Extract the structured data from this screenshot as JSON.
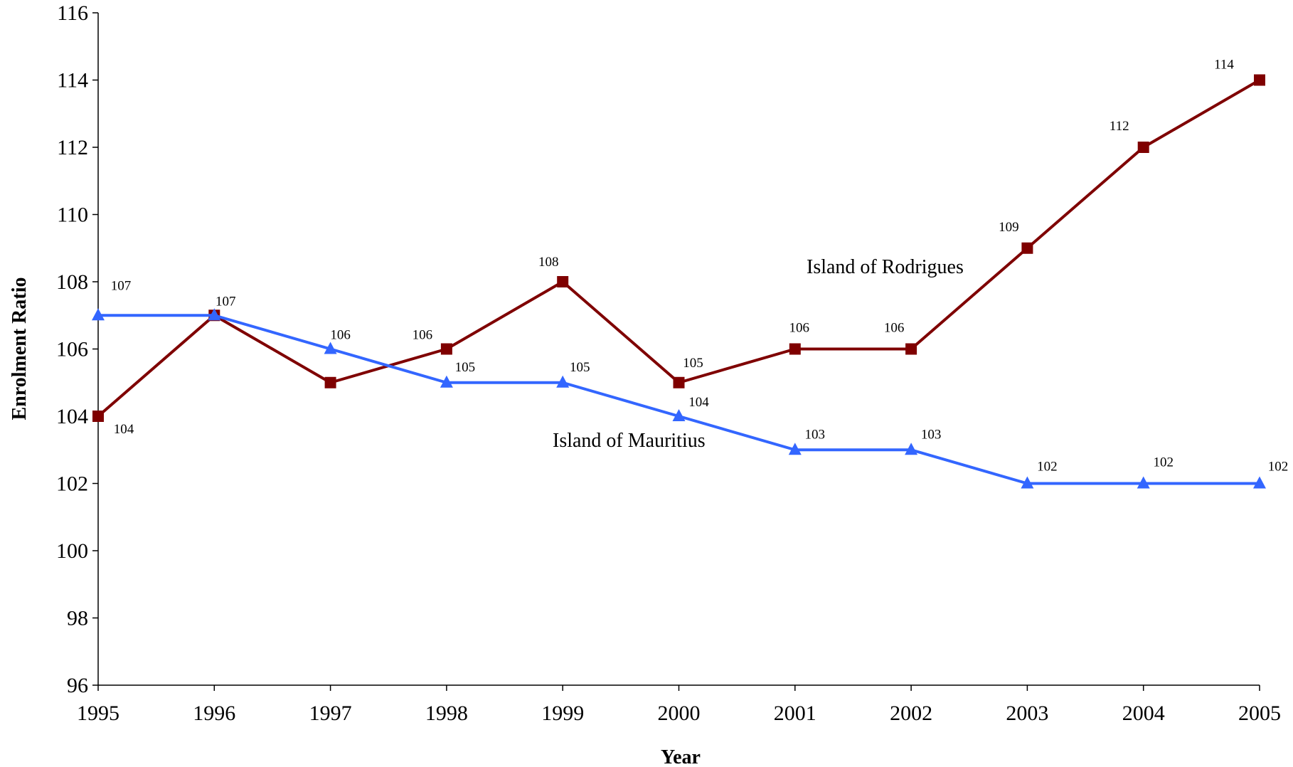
{
  "chart_data": {
    "type": "line",
    "title": "",
    "xlabel": "Year",
    "ylabel": "Enrolment Ratio",
    "categories": [
      "1995",
      "1996",
      "1997",
      "1998",
      "1999",
      "2000",
      "2001",
      "2002",
      "2003",
      "2004",
      "2005"
    ],
    "ylim": [
      96,
      116
    ],
    "yticks": [
      96,
      98,
      100,
      102,
      104,
      106,
      108,
      110,
      112,
      114,
      116
    ],
    "grid": false,
    "legend": "none (series labelled inline)",
    "series": [
      {
        "name": "Island of Rodrigues",
        "values": [
          104,
          107,
          105,
          106,
          108,
          105,
          106,
          106,
          109,
          112,
          114
        ],
        "data_labels": [
          "104",
          "107",
          "",
          "106",
          "108",
          "105",
          "106",
          "106",
          "109",
          "112",
          "114"
        ],
        "color": "#7f0000",
        "marker": "square"
      },
      {
        "name": "Island of Mauritius",
        "values": [
          107,
          107,
          106,
          105,
          105,
          104,
          103,
          103,
          102,
          102,
          102
        ],
        "data_labels": [
          "107",
          "",
          "106",
          "105",
          "105",
          "104",
          "103",
          "103",
          "102",
          "102",
          "102"
        ],
        "color": "#3366ff",
        "marker": "triangle"
      }
    ]
  }
}
